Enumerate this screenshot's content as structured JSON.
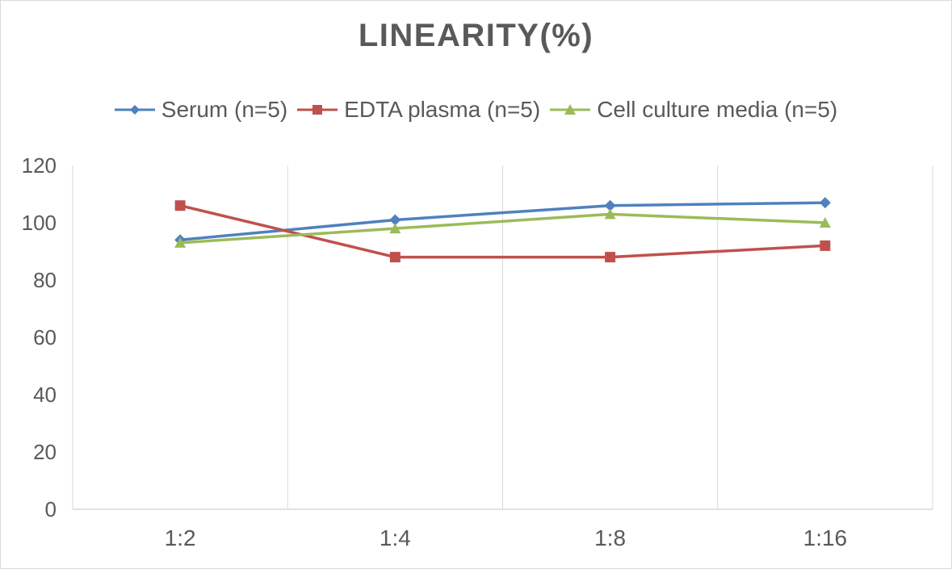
{
  "chart_data": {
    "type": "line",
    "title": "LINEARITY(%)",
    "categories": [
      "1:2",
      "1:4",
      "1:8",
      "1:16"
    ],
    "ylim": [
      0,
      120
    ],
    "yticks": [
      0,
      20,
      40,
      60,
      80,
      100,
      120
    ],
    "grid": "vertical",
    "legend_position": "top",
    "series": [
      {
        "name": "Serum (n=5)",
        "values": [
          94,
          101,
          106,
          107
        ],
        "color": "#4f81bd",
        "marker": "diamond"
      },
      {
        "name": "EDTA plasma (n=5)",
        "values": [
          106,
          88,
          88,
          92
        ],
        "color": "#c0504d",
        "marker": "square"
      },
      {
        "name": "Cell culture media (n=5)",
        "values": [
          93,
          98,
          103,
          100
        ],
        "color": "#9bbb59",
        "marker": "triangle"
      }
    ]
  }
}
